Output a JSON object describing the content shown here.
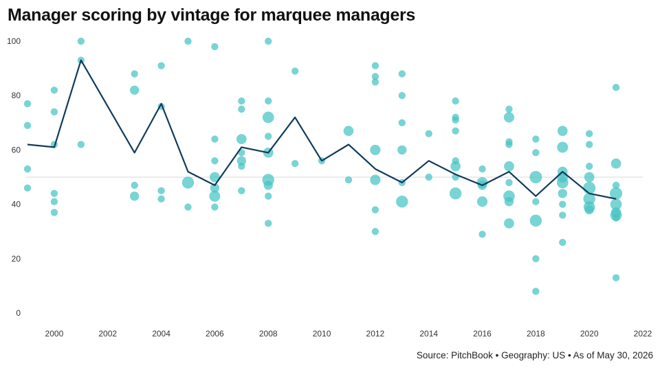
{
  "title": "Manager scoring by vintage for marquee managers",
  "source": "Source: PitchBook • Geography: US • As of May 30, 2026",
  "colors": {
    "bubble": "#45c4c4",
    "line": "#0e3a5c",
    "reference_line": "#d8d8d8",
    "text": "#333333"
  },
  "chart_data": {
    "type": "scatter",
    "title": "Manager scoring by vintage for marquee managers",
    "xlabel": "",
    "ylabel": "",
    "xlim": [
      1999,
      2022
    ],
    "ylim": [
      0,
      100
    ],
    "x_ticks": [
      2000,
      2002,
      2004,
      2006,
      2008,
      2010,
      2012,
      2014,
      2016,
      2018,
      2020,
      2022
    ],
    "y_ticks": [
      0,
      20,
      40,
      60,
      80,
      100
    ],
    "reference_line_y": 50,
    "grid": false,
    "legend": "none",
    "series": [
      {
        "type": "scatter",
        "points": [
          {
            "x": 1999,
            "y": 77,
            "s": 1
          },
          {
            "x": 1999,
            "y": 69,
            "s": 1
          },
          {
            "x": 1999,
            "y": 53,
            "s": 1
          },
          {
            "x": 1999,
            "y": 46,
            "s": 1
          },
          {
            "x": 2000,
            "y": 82,
            "s": 1
          },
          {
            "x": 2000,
            "y": 74,
            "s": 1
          },
          {
            "x": 2000,
            "y": 62,
            "s": 1
          },
          {
            "x": 2000,
            "y": 44,
            "s": 1
          },
          {
            "x": 2000,
            "y": 41,
            "s": 1
          },
          {
            "x": 2000,
            "y": 37,
            "s": 1
          },
          {
            "x": 2001,
            "y": 100,
            "s": 1
          },
          {
            "x": 2001,
            "y": 93,
            "s": 1
          },
          {
            "x": 2001,
            "y": 62,
            "s": 1
          },
          {
            "x": 2003,
            "y": 88,
            "s": 1
          },
          {
            "x": 2003,
            "y": 82,
            "s": 1.2
          },
          {
            "x": 2003,
            "y": 47,
            "s": 1
          },
          {
            "x": 2003,
            "y": 43,
            "s": 1.2
          },
          {
            "x": 2004,
            "y": 91,
            "s": 1
          },
          {
            "x": 2004,
            "y": 76,
            "s": 1
          },
          {
            "x": 2004,
            "y": 45,
            "s": 1
          },
          {
            "x": 2004,
            "y": 42,
            "s": 1
          },
          {
            "x": 2005,
            "y": 100,
            "s": 1
          },
          {
            "x": 2005,
            "y": 48,
            "s": 2.2
          },
          {
            "x": 2005,
            "y": 39,
            "s": 1
          },
          {
            "x": 2006,
            "y": 98,
            "s": 1
          },
          {
            "x": 2006,
            "y": 64,
            "s": 1
          },
          {
            "x": 2006,
            "y": 56,
            "s": 1
          },
          {
            "x": 2006,
            "y": 50,
            "s": 1.5
          },
          {
            "x": 2006,
            "y": 46,
            "s": 1.2
          },
          {
            "x": 2006,
            "y": 43,
            "s": 1.8
          },
          {
            "x": 2006,
            "y": 39,
            "s": 1
          },
          {
            "x": 2007,
            "y": 78,
            "s": 1
          },
          {
            "x": 2007,
            "y": 75,
            "s": 1
          },
          {
            "x": 2007,
            "y": 64,
            "s": 1.5
          },
          {
            "x": 2007,
            "y": 59,
            "s": 1
          },
          {
            "x": 2007,
            "y": 56,
            "s": 1.2
          },
          {
            "x": 2007,
            "y": 54,
            "s": 1
          },
          {
            "x": 2007,
            "y": 45,
            "s": 1
          },
          {
            "x": 2008,
            "y": 100,
            "s": 1
          },
          {
            "x": 2008,
            "y": 78,
            "s": 1
          },
          {
            "x": 2008,
            "y": 72,
            "s": 2
          },
          {
            "x": 2008,
            "y": 65,
            "s": 1
          },
          {
            "x": 2008,
            "y": 59,
            "s": 1.5
          },
          {
            "x": 2008,
            "y": 49,
            "s": 2.2
          },
          {
            "x": 2008,
            "y": 47,
            "s": 1.2
          },
          {
            "x": 2008,
            "y": 43,
            "s": 1
          },
          {
            "x": 2008,
            "y": 33,
            "s": 1
          },
          {
            "x": 2009,
            "y": 89,
            "s": 1
          },
          {
            "x": 2009,
            "y": 55,
            "s": 1
          },
          {
            "x": 2010,
            "y": 56,
            "s": 1
          },
          {
            "x": 2011,
            "y": 67,
            "s": 1.5
          },
          {
            "x": 2011,
            "y": 49,
            "s": 1
          },
          {
            "x": 2012,
            "y": 91,
            "s": 1
          },
          {
            "x": 2012,
            "y": 87,
            "s": 1
          },
          {
            "x": 2012,
            "y": 85,
            "s": 1
          },
          {
            "x": 2012,
            "y": 60,
            "s": 1.6
          },
          {
            "x": 2012,
            "y": 49,
            "s": 1.6
          },
          {
            "x": 2012,
            "y": 38,
            "s": 1
          },
          {
            "x": 2012,
            "y": 30,
            "s": 1
          },
          {
            "x": 2013,
            "y": 88,
            "s": 1
          },
          {
            "x": 2013,
            "y": 80,
            "s": 1
          },
          {
            "x": 2013,
            "y": 70,
            "s": 1
          },
          {
            "x": 2013,
            "y": 60,
            "s": 1.2
          },
          {
            "x": 2013,
            "y": 48,
            "s": 1
          },
          {
            "x": 2013,
            "y": 41,
            "s": 2.2
          },
          {
            "x": 2014,
            "y": 66,
            "s": 1
          },
          {
            "x": 2014,
            "y": 50,
            "s": 1
          },
          {
            "x": 2015,
            "y": 78,
            "s": 1
          },
          {
            "x": 2015,
            "y": 72,
            "s": 1
          },
          {
            "x": 2015,
            "y": 71,
            "s": 1
          },
          {
            "x": 2015,
            "y": 67,
            "s": 1
          },
          {
            "x": 2015,
            "y": 56,
            "s": 1
          },
          {
            "x": 2015,
            "y": 54,
            "s": 1.5
          },
          {
            "x": 2015,
            "y": 50,
            "s": 1
          },
          {
            "x": 2015,
            "y": 44,
            "s": 2.2
          },
          {
            "x": 2016,
            "y": 53,
            "s": 1
          },
          {
            "x": 2016,
            "y": 48,
            "s": 1.8
          },
          {
            "x": 2016,
            "y": 47,
            "s": 1.2
          },
          {
            "x": 2016,
            "y": 41,
            "s": 1.6
          },
          {
            "x": 2016,
            "y": 29,
            "s": 1
          },
          {
            "x": 2017,
            "y": 75,
            "s": 1
          },
          {
            "x": 2017,
            "y": 72,
            "s": 1.6
          },
          {
            "x": 2017,
            "y": 63,
            "s": 1
          },
          {
            "x": 2017,
            "y": 62,
            "s": 1
          },
          {
            "x": 2017,
            "y": 54,
            "s": 1.5
          },
          {
            "x": 2017,
            "y": 48,
            "s": 1
          },
          {
            "x": 2017,
            "y": 43,
            "s": 2
          },
          {
            "x": 2017,
            "y": 41,
            "s": 1.2
          },
          {
            "x": 2017,
            "y": 33,
            "s": 1.5
          },
          {
            "x": 2018,
            "y": 64,
            "s": 1
          },
          {
            "x": 2018,
            "y": 59,
            "s": 1
          },
          {
            "x": 2018,
            "y": 50,
            "s": 2.4
          },
          {
            "x": 2018,
            "y": 41,
            "s": 1
          },
          {
            "x": 2018,
            "y": 34,
            "s": 2.2
          },
          {
            "x": 2018,
            "y": 20,
            "s": 1
          },
          {
            "x": 2018,
            "y": 8,
            "s": 1
          },
          {
            "x": 2019,
            "y": 67,
            "s": 1.5
          },
          {
            "x": 2019,
            "y": 61,
            "s": 1.8
          },
          {
            "x": 2019,
            "y": 52,
            "s": 1.5
          },
          {
            "x": 2019,
            "y": 50,
            "s": 1.8
          },
          {
            "x": 2019,
            "y": 48,
            "s": 2
          },
          {
            "x": 2019,
            "y": 44,
            "s": 1.2
          },
          {
            "x": 2019,
            "y": 40,
            "s": 1
          },
          {
            "x": 2019,
            "y": 36,
            "s": 1
          },
          {
            "x": 2019,
            "y": 26,
            "s": 1
          },
          {
            "x": 2020,
            "y": 66,
            "s": 1
          },
          {
            "x": 2020,
            "y": 62,
            "s": 1
          },
          {
            "x": 2020,
            "y": 54,
            "s": 1
          },
          {
            "x": 2020,
            "y": 50,
            "s": 1.5
          },
          {
            "x": 2020,
            "y": 46,
            "s": 2.4
          },
          {
            "x": 2020,
            "y": 42,
            "s": 2.2
          },
          {
            "x": 2020,
            "y": 39,
            "s": 2
          },
          {
            "x": 2020,
            "y": 38,
            "s": 1.2
          },
          {
            "x": 2021,
            "y": 83,
            "s": 1
          },
          {
            "x": 2021,
            "y": 55,
            "s": 1.5
          },
          {
            "x": 2021,
            "y": 47,
            "s": 1
          },
          {
            "x": 2021,
            "y": 44,
            "s": 2.4
          },
          {
            "x": 2021,
            "y": 40,
            "s": 2
          },
          {
            "x": 2021,
            "y": 37,
            "s": 1.5
          },
          {
            "x": 2021,
            "y": 36,
            "s": 2
          },
          {
            "x": 2021,
            "y": 35,
            "s": 1
          },
          {
            "x": 2021,
            "y": 13,
            "s": 1
          }
        ]
      },
      {
        "type": "line",
        "points": [
          {
            "x": 1999,
            "y": 62
          },
          {
            "x": 2000,
            "y": 61
          },
          {
            "x": 2001,
            "y": 93
          },
          {
            "x": 2003,
            "y": 59
          },
          {
            "x": 2004,
            "y": 77
          },
          {
            "x": 2005,
            "y": 52
          },
          {
            "x": 2006,
            "y": 47
          },
          {
            "x": 2007,
            "y": 61
          },
          {
            "x": 2008,
            "y": 59
          },
          {
            "x": 2009,
            "y": 72
          },
          {
            "x": 2010,
            "y": 56
          },
          {
            "x": 2011,
            "y": 62
          },
          {
            "x": 2012,
            "y": 53
          },
          {
            "x": 2013,
            "y": 48
          },
          {
            "x": 2014,
            "y": 56
          },
          {
            "x": 2015,
            "y": 51
          },
          {
            "x": 2016,
            "y": 47
          },
          {
            "x": 2017,
            "y": 52
          },
          {
            "x": 2018,
            "y": 43
          },
          {
            "x": 2019,
            "y": 52
          },
          {
            "x": 2020,
            "y": 44
          },
          {
            "x": 2021,
            "y": 42
          }
        ]
      }
    ]
  }
}
